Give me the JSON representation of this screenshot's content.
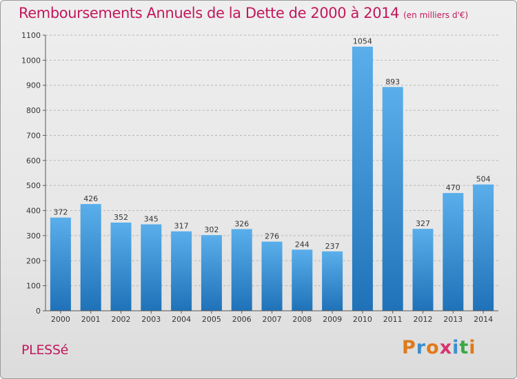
{
  "title": "Remboursements Annuels de la Dette de 2000 à 2014",
  "unit_note": "(en milliers d'€)",
  "commune": "PLESSé",
  "logo_text": "Proxiti",
  "colors": {
    "title": "#c2185b",
    "bar_top": "#5aaeea",
    "bar_bottom": "#1f72b8",
    "grid": "#b5b5b5",
    "axis": "#555555",
    "logo_letters": [
      "#e07a1a",
      "#3a8fd0",
      "#e07a1a",
      "#d6336c",
      "#3a8fd0",
      "#39a845",
      "#e07a1a"
    ]
  },
  "chart_data": {
    "type": "bar",
    "title": "Remboursements Annuels de la Dette de 2000 à 2014",
    "xlabel": "",
    "ylabel": "",
    "categories": [
      "2000",
      "2001",
      "2002",
      "2003",
      "2004",
      "2005",
      "2006",
      "2007",
      "2008",
      "2009",
      "2010",
      "2011",
      "2012",
      "2013",
      "2014"
    ],
    "values": [
      372,
      426,
      352,
      345,
      317,
      302,
      326,
      276,
      244,
      237,
      1054,
      893,
      327,
      470,
      504
    ],
    "ylim": [
      0,
      1100
    ],
    "yticks": [
      0,
      100,
      200,
      300,
      400,
      500,
      600,
      700,
      800,
      900,
      1000,
      1100
    ],
    "grid": true,
    "data_labels": true
  }
}
